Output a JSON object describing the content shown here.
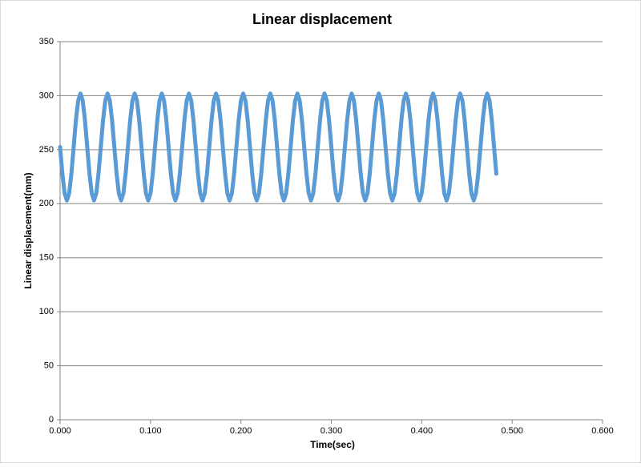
{
  "chart_data": {
    "type": "line",
    "title": "Linear displacement",
    "x_label": "Time(sec)",
    "y_label": "Linear displacement(mm)",
    "x": [
      0,
      0.0025,
      0.005,
      0.0075,
      0.01,
      0.0125,
      0.015,
      0.0175,
      0.02,
      0.0225,
      0.025,
      0.0275,
      0.03,
      0.0325,
      0.035,
      0.0375,
      0.04,
      0.0425,
      0.045,
      0.0475,
      0.05,
      0.0525,
      0.055,
      0.0575,
      0.06,
      0.0625,
      0.065,
      0.0675,
      0.07,
      0.0725,
      0.075,
      0.0775,
      0.08,
      0.0825,
      0.085,
      0.0875,
      0.09,
      0.0925,
      0.095,
      0.0975,
      0.1,
      0.1025,
      0.105,
      0.1075,
      0.11,
      0.1125,
      0.115,
      0.1175,
      0.12,
      0.1225,
      0.125,
      0.1275,
      0.13,
      0.1325,
      0.135,
      0.1375,
      0.14,
      0.1425,
      0.145,
      0.1475,
      0.15,
      0.1525,
      0.155,
      0.1575,
      0.16,
      0.1625,
      0.165,
      0.1675,
      0.17,
      0.1725,
      0.175,
      0.1775,
      0.18,
      0.1825,
      0.185,
      0.1875,
      0.19,
      0.1925,
      0.195,
      0.1975,
      0.2,
      0.2025,
      0.205,
      0.2075,
      0.21,
      0.2125,
      0.215,
      0.2175,
      0.22,
      0.2225,
      0.225,
      0.2275,
      0.23,
      0.2325,
      0.235,
      0.2375,
      0.24,
      0.2425,
      0.245,
      0.2475,
      0.25,
      0.2525,
      0.255,
      0.2575,
      0.26,
      0.2625,
      0.265,
      0.2675,
      0.27,
      0.2725,
      0.275,
      0.2775,
      0.28,
      0.2825,
      0.285,
      0.2875,
      0.29,
      0.2925,
      0.295,
      0.2975,
      0.3,
      0.3025,
      0.305,
      0.3075,
      0.31,
      0.3125,
      0.315,
      0.3175,
      0.32,
      0.3225,
      0.325,
      0.3275,
      0.33,
      0.3325,
      0.335,
      0.3375,
      0.34,
      0.3425,
      0.345,
      0.3475,
      0.35,
      0.3525,
      0.355,
      0.3575,
      0.36,
      0.3625,
      0.365,
      0.3675,
      0.37,
      0.3725,
      0.375,
      0.3775,
      0.38,
      0.3825,
      0.385,
      0.3875,
      0.39,
      0.3925,
      0.395,
      0.3975,
      0.4,
      0.4025,
      0.405,
      0.4075,
      0.41,
      0.4125,
      0.415,
      0.4175,
      0.42,
      0.4225,
      0.425,
      0.4275,
      0.43,
      0.4325,
      0.435,
      0.4375,
      0.44,
      0.4425,
      0.445,
      0.4475,
      0.45,
      0.4525,
      0.455,
      0.4575,
      0.46,
      0.4625,
      0.465,
      0.4675,
      0.47,
      0.4725,
      0.475,
      0.4775,
      0.48,
      0.4825
    ],
    "series": [
      {
        "color": "#5b9bd5",
        "values": [
          252.5,
          227.8,
          209.6,
          203,
          209.6,
          227.8,
          252.5,
          277.3,
          295.4,
          302,
          295.4,
          277.3,
          252.5,
          227.8,
          209.6,
          203,
          209.6,
          227.8,
          252.5,
          277.3,
          295.4,
          302,
          295.4,
          277.3,
          252.5,
          227.8,
          209.6,
          203,
          209.6,
          227.8,
          252.5,
          277.3,
          295.4,
          302,
          295.4,
          277.3,
          252.5,
          227.8,
          209.6,
          203,
          209.6,
          227.8,
          252.5,
          277.3,
          295.4,
          302,
          295.4,
          277.3,
          252.5,
          227.8,
          209.6,
          203,
          209.6,
          227.8,
          252.5,
          277.3,
          295.4,
          302,
          295.4,
          277.3,
          252.5,
          227.8,
          209.6,
          203,
          209.6,
          227.8,
          252.5,
          277.3,
          295.4,
          302,
          295.4,
          277.3,
          252.5,
          227.8,
          209.6,
          203,
          209.6,
          227.8,
          252.5,
          277.3,
          295.4,
          302,
          295.4,
          277.3,
          252.5,
          227.8,
          209.6,
          203,
          209.6,
          227.8,
          252.5,
          277.3,
          295.4,
          302,
          295.4,
          277.3,
          252.5,
          227.8,
          209.6,
          203,
          209.6,
          227.8,
          252.5,
          277.3,
          295.4,
          302,
          295.4,
          277.3,
          252.5,
          227.8,
          209.6,
          203,
          209.6,
          227.8,
          252.5,
          277.3,
          295.4,
          302,
          295.4,
          277.3,
          252.5,
          227.8,
          209.6,
          203,
          209.6,
          227.8,
          252.5,
          277.3,
          295.4,
          302,
          295.4,
          277.3,
          252.5,
          227.8,
          209.6,
          203,
          209.6,
          227.8,
          252.5,
          277.3,
          295.4,
          302,
          295.4,
          277.3,
          252.5,
          227.8,
          209.6,
          203,
          209.6,
          227.8,
          252.5,
          277.3,
          295.4,
          302,
          295.4,
          277.3,
          252.5,
          227.8,
          209.6,
          203,
          209.6,
          227.8,
          252.5,
          277.3,
          295.4,
          302,
          295.4,
          277.3,
          252.5,
          227.8,
          209.6,
          203,
          209.6,
          227.8,
          252.5,
          277.3,
          295.4,
          302,
          295.4,
          277.3,
          252.5,
          227.8,
          209.6,
          203,
          209.6,
          227.8,
          252.5,
          277.3,
          295.4,
          302,
          295.4,
          277.3,
          252.5,
          227.8
        ]
      }
    ],
    "xlim": [
      0,
      0.6
    ],
    "xticks": [
      {
        "value": 0,
        "label": "0.000"
      },
      {
        "value": 0.1,
        "label": "0.100"
      },
      {
        "value": 0.2,
        "label": "0.200"
      },
      {
        "value": 0.3,
        "label": "0.300"
      },
      {
        "value": 0.4,
        "label": "0.400"
      },
      {
        "value": 0.5,
        "label": "0.500"
      },
      {
        "value": 0.6,
        "label": "0.600"
      }
    ],
    "ylim": [
      0,
      350
    ],
    "yticks": [
      0,
      50,
      100,
      150,
      200,
      250,
      300,
      350
    ],
    "grid": true
  }
}
